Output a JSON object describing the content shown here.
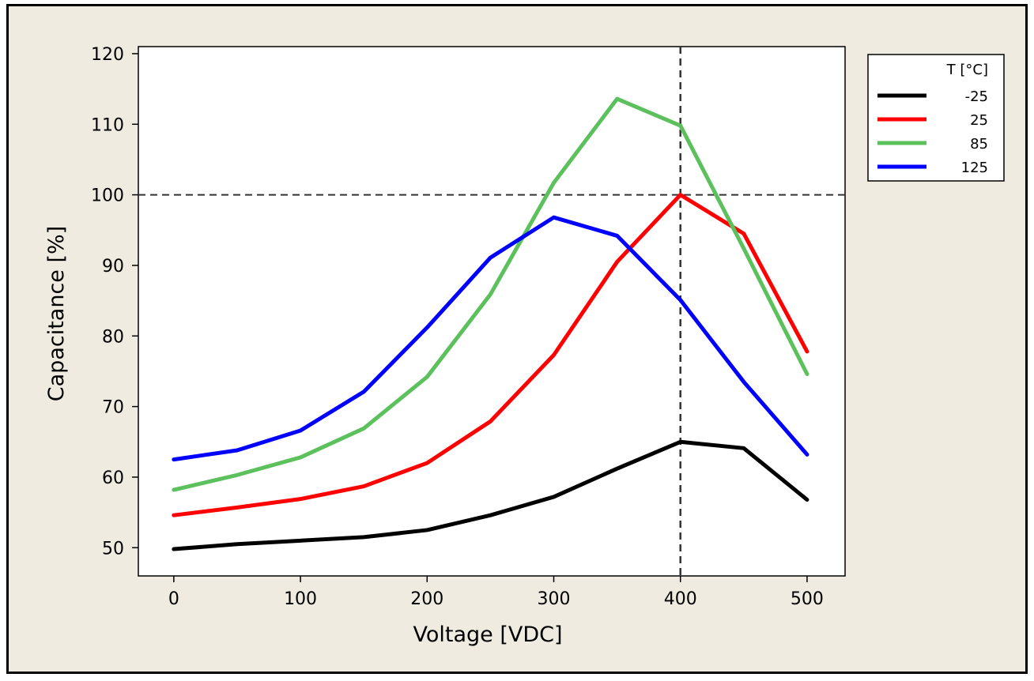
{
  "chart_data": {
    "type": "line",
    "xlabel": "Voltage [VDC]",
    "ylabel": "Capacitance [%]",
    "xlim": [
      -28,
      530
    ],
    "ylim": [
      46,
      121
    ],
    "xticks": [
      0,
      100,
      200,
      300,
      400,
      500
    ],
    "yticks": [
      50,
      60,
      70,
      80,
      90,
      100,
      110,
      120
    ],
    "x": [
      0,
      50,
      100,
      150,
      200,
      250,
      300,
      350,
      400,
      450,
      500
    ],
    "legend_title": "T [°C]",
    "legend_position": "top-right outside",
    "reference_lines": {
      "x": 400,
      "y": 100,
      "style": "dashed"
    },
    "series": [
      {
        "name": "-25",
        "color": "#000000",
        "values": [
          49.8,
          50.5,
          51.0,
          51.5,
          52.5,
          54.6,
          57.2,
          61.2,
          65.0,
          64.1,
          56.8
        ]
      },
      {
        "name": "25",
        "color": "#ff0000",
        "values": [
          54.6,
          55.7,
          56.9,
          58.7,
          62.0,
          67.9,
          77.3,
          90.5,
          100.0,
          94.5,
          77.8
        ]
      },
      {
        "name": "85",
        "color": "#5cc15c",
        "values": [
          58.2,
          60.3,
          62.8,
          66.9,
          74.2,
          85.9,
          101.7,
          113.6,
          109.8,
          92.4,
          74.6
        ]
      },
      {
        "name": "125",
        "color": "#0000ff",
        "values": [
          62.5,
          63.8,
          66.6,
          72.1,
          81.2,
          91.1,
          96.8,
          94.2,
          85.1,
          73.5,
          63.2
        ]
      }
    ]
  }
}
